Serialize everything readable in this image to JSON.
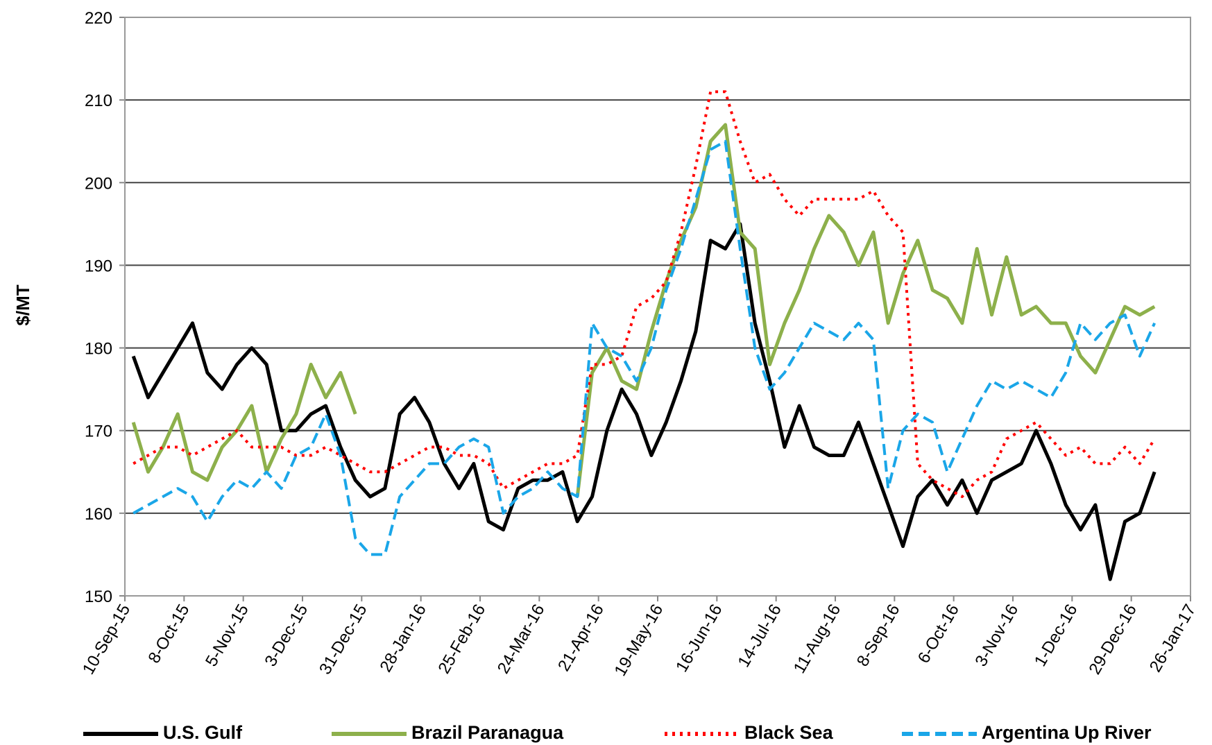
{
  "chart_data": {
    "type": "line",
    "y_label": "$/MT",
    "ylim": [
      150,
      220
    ],
    "yticks": [
      150,
      160,
      170,
      180,
      190,
      200,
      210,
      220
    ],
    "grid": true,
    "legend": "bottom",
    "xlim": [
      "2015-09-10",
      "2017-01-26"
    ],
    "xticks": [
      {
        "value": "2015-09-10",
        "label": "10-Sep-15"
      },
      {
        "value": "2015-10-08",
        "label": "8-Oct-15"
      },
      {
        "value": "2015-11-05",
        "label": "5-Nov-15"
      },
      {
        "value": "2015-12-03",
        "label": "3-Dec-15"
      },
      {
        "value": "2015-12-31",
        "label": "31-Dec-15"
      },
      {
        "value": "2016-01-28",
        "label": "28-Jan-16"
      },
      {
        "value": "2016-02-25",
        "label": "25-Feb-16"
      },
      {
        "value": "2016-03-24",
        "label": "24-Mar-16"
      },
      {
        "value": "2016-04-21",
        "label": "21-Apr-16"
      },
      {
        "value": "2016-05-19",
        "label": "19-May-16"
      },
      {
        "value": "2016-06-16",
        "label": "16-Jun-16"
      },
      {
        "value": "2016-07-14",
        "label": "14-Jul-16"
      },
      {
        "value": "2016-08-11",
        "label": "11-Aug-16"
      },
      {
        "value": "2016-09-08",
        "label": "8-Sep-16"
      },
      {
        "value": "2016-10-06",
        "label": "6-Oct-16"
      },
      {
        "value": "2016-11-03",
        "label": "3-Nov-16"
      },
      {
        "value": "2016-12-01",
        "label": "1-Dec-16"
      },
      {
        "value": "2016-12-29",
        "label": "29-Dec-16"
      },
      {
        "value": "2017-01-26",
        "label": "26-Jan-17"
      }
    ],
    "x": [
      "2015-09-14",
      "2015-09-21",
      "2015-09-28",
      "2015-10-05",
      "2015-10-12",
      "2015-10-19",
      "2015-10-26",
      "2015-11-02",
      "2015-11-09",
      "2015-11-16",
      "2015-11-23",
      "2015-11-30",
      "2015-12-07",
      "2015-12-14",
      "2015-12-21",
      "2015-12-28",
      "2016-01-04",
      "2016-01-11",
      "2016-01-18",
      "2016-01-25",
      "2016-02-01",
      "2016-02-08",
      "2016-02-15",
      "2016-02-22",
      "2016-02-29",
      "2016-03-07",
      "2016-03-14",
      "2016-03-21",
      "2016-03-28",
      "2016-04-04",
      "2016-04-11",
      "2016-04-18",
      "2016-04-25",
      "2016-05-02",
      "2016-05-09",
      "2016-05-16",
      "2016-05-23",
      "2016-05-30",
      "2016-06-06",
      "2016-06-13",
      "2016-06-20",
      "2016-06-27",
      "2016-07-04",
      "2016-07-11",
      "2016-07-18",
      "2016-07-25",
      "2016-08-01",
      "2016-08-08",
      "2016-08-15",
      "2016-08-22",
      "2016-08-29",
      "2016-09-05",
      "2016-09-12",
      "2016-09-19",
      "2016-09-26",
      "2016-10-03",
      "2016-10-10",
      "2016-10-17",
      "2016-10-24",
      "2016-10-31",
      "2016-11-07",
      "2016-11-14",
      "2016-11-21",
      "2016-11-28",
      "2016-12-05",
      "2016-12-12",
      "2016-12-19",
      "2016-12-26",
      "2017-01-02",
      "2017-01-09"
    ],
    "series": [
      {
        "name": "U.S. Gulf",
        "color": "#000000",
        "style": "solid",
        "values": [
          179,
          174,
          177,
          180,
          183,
          177,
          175,
          178,
          180,
          178,
          170,
          170,
          172,
          173,
          168,
          164,
          162,
          163,
          172,
          174,
          171,
          166,
          163,
          166,
          159,
          158,
          163,
          164,
          164,
          165,
          159,
          162,
          170,
          175,
          172,
          167,
          171,
          176,
          182,
          193,
          192,
          195,
          183,
          176,
          168,
          173,
          168,
          167,
          167,
          171,
          166,
          161,
          156,
          162,
          164,
          161,
          164,
          160,
          164,
          165,
          166,
          170,
          166,
          161,
          158,
          161,
          152,
          159,
          160,
          165
        ]
      },
      {
        "name": "Brazil Paranagua",
        "color": "#8db04b",
        "style": "solid",
        "values": [
          171,
          165,
          168,
          172,
          165,
          164,
          168,
          170,
          173,
          165,
          169,
          172,
          178,
          174,
          177,
          172,
          null,
          null,
          null,
          null,
          null,
          null,
          null,
          null,
          null,
          null,
          null,
          null,
          null,
          null,
          162,
          177,
          180,
          176,
          175,
          182,
          188,
          193,
          197,
          205,
          207,
          194,
          192,
          178,
          183,
          187,
          192,
          196,
          194,
          190,
          194,
          183,
          189,
          193,
          187,
          186,
          183,
          192,
          184,
          191,
          184,
          185,
          183,
          183,
          179,
          177,
          181,
          185,
          184,
          185
        ]
      },
      {
        "name": "Black Sea",
        "color": "#ff0000",
        "style": "dotted",
        "values": [
          166,
          167,
          168,
          168,
          167,
          168,
          169,
          170,
          168,
          168,
          168,
          167,
          167,
          168,
          167,
          166,
          165,
          165,
          166,
          167,
          168,
          168,
          167,
          167,
          166,
          163,
          164,
          165,
          166,
          166,
          167,
          178,
          178,
          179,
          185,
          186,
          188,
          194,
          202,
          211,
          211,
          205,
          200,
          201,
          198,
          196,
          198,
          198,
          198,
          198,
          199,
          196,
          194,
          166,
          164,
          163,
          162,
          164,
          165,
          169,
          170,
          171,
          169,
          167,
          168,
          166,
          166,
          168,
          166,
          169
        ]
      },
      {
        "name": "Argentina Up River",
        "color": "#1aa6e8",
        "style": "dashed",
        "values": [
          160,
          161,
          162,
          163,
          162,
          159,
          162,
          164,
          163,
          165,
          163,
          167,
          168,
          172,
          167,
          157,
          155,
          155,
          162,
          164,
          166,
          166,
          168,
          169,
          168,
          160,
          162,
          163,
          165,
          163,
          162,
          183,
          180,
          179,
          176,
          180,
          187,
          192,
          198,
          204,
          205,
          192,
          180,
          175,
          177,
          180,
          183,
          182,
          181,
          183,
          181,
          163,
          170,
          172,
          171,
          165,
          169,
          173,
          176,
          175,
          176,
          175,
          174,
          177,
          183,
          181,
          183,
          184,
          179,
          183
        ]
      }
    ]
  }
}
